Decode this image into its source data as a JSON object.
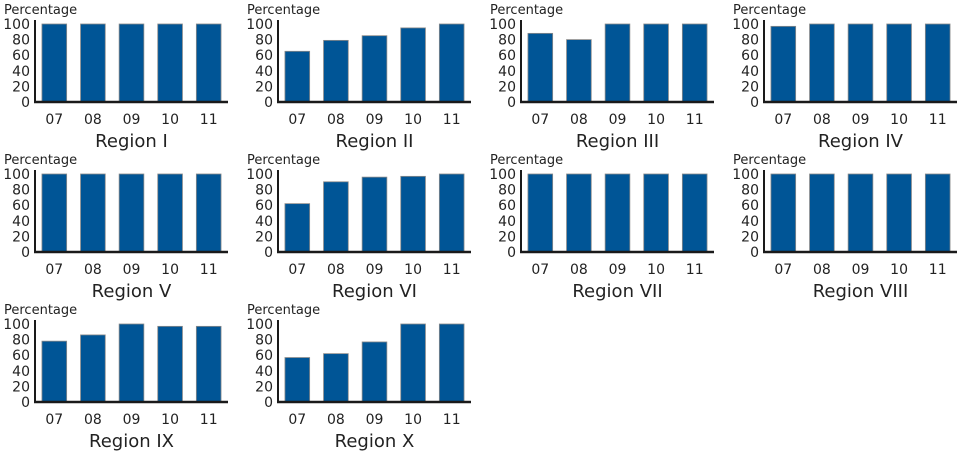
{
  "chart_data": [
    {
      "type": "bar",
      "title": "Region I",
      "ylabel": "Percentage",
      "categories": [
        "07",
        "08",
        "09",
        "10",
        "11"
      ],
      "values": [
        100,
        100,
        100,
        100,
        100
      ],
      "ylim": [
        0,
        100
      ],
      "yticks": [
        0,
        20,
        40,
        60,
        80,
        100
      ]
    },
    {
      "type": "bar",
      "title": "Region II",
      "ylabel": "Percentage",
      "categories": [
        "07",
        "08",
        "09",
        "10",
        "11"
      ],
      "values": [
        65,
        79,
        85,
        95,
        100
      ],
      "ylim": [
        0,
        100
      ],
      "yticks": [
        0,
        20,
        40,
        60,
        80,
        100
      ]
    },
    {
      "type": "bar",
      "title": "Region III",
      "ylabel": "Percentage",
      "categories": [
        "07",
        "08",
        "09",
        "10",
        "11"
      ],
      "values": [
        88,
        80,
        100,
        100,
        100
      ],
      "ylim": [
        0,
        100
      ],
      "yticks": [
        0,
        20,
        40,
        60,
        80,
        100
      ]
    },
    {
      "type": "bar",
      "title": "Region IV",
      "ylabel": "Percentage",
      "categories": [
        "07",
        "08",
        "09",
        "10",
        "11"
      ],
      "values": [
        97,
        100,
        100,
        100,
        100
      ],
      "ylim": [
        0,
        100
      ],
      "yticks": [
        0,
        20,
        40,
        60,
        80,
        100
      ]
    },
    {
      "type": "bar",
      "title": "Region V",
      "ylabel": "Percentage",
      "categories": [
        "07",
        "08",
        "09",
        "10",
        "11"
      ],
      "values": [
        100,
        100,
        100,
        100,
        100
      ],
      "ylim": [
        0,
        100
      ],
      "yticks": [
        0,
        20,
        40,
        60,
        80,
        100
      ]
    },
    {
      "type": "bar",
      "title": "Region VI",
      "ylabel": "Percentage",
      "categories": [
        "07",
        "08",
        "09",
        "10",
        "11"
      ],
      "values": [
        62,
        90,
        96,
        97,
        100
      ],
      "ylim": [
        0,
        100
      ],
      "yticks": [
        0,
        20,
        40,
        60,
        80,
        100
      ]
    },
    {
      "type": "bar",
      "title": "Region VII",
      "ylabel": "Percentage",
      "categories": [
        "07",
        "08",
        "09",
        "10",
        "11"
      ],
      "values": [
        100,
        100,
        100,
        100,
        100
      ],
      "ylim": [
        0,
        100
      ],
      "yticks": [
        0,
        20,
        40,
        60,
        80,
        100
      ]
    },
    {
      "type": "bar",
      "title": "Region VIII",
      "ylabel": "Percentage",
      "categories": [
        "07",
        "08",
        "09",
        "10",
        "11"
      ],
      "values": [
        100,
        100,
        100,
        100,
        100
      ],
      "ylim": [
        0,
        100
      ],
      "yticks": [
        0,
        20,
        40,
        60,
        80,
        100
      ]
    },
    {
      "type": "bar",
      "title": "Region IX",
      "ylabel": "Percentage",
      "categories": [
        "07",
        "08",
        "09",
        "10",
        "11"
      ],
      "values": [
        78,
        86,
        100,
        97,
        97
      ],
      "ylim": [
        0,
        100
      ],
      "yticks": [
        0,
        20,
        40,
        60,
        80,
        100
      ]
    },
    {
      "type": "bar",
      "title": "Region X",
      "ylabel": "Percentage",
      "categories": [
        "07",
        "08",
        "09",
        "10",
        "11"
      ],
      "values": [
        57,
        62,
        77,
        100,
        100
      ],
      "ylim": [
        0,
        100
      ],
      "yticks": [
        0,
        20,
        40,
        60,
        80,
        100
      ]
    }
  ],
  "colors": {
    "bar": "#005596",
    "bar_edge": "#8a8a8a",
    "axis": "#1a1a1a"
  },
  "grid": false,
  "legend": "none"
}
